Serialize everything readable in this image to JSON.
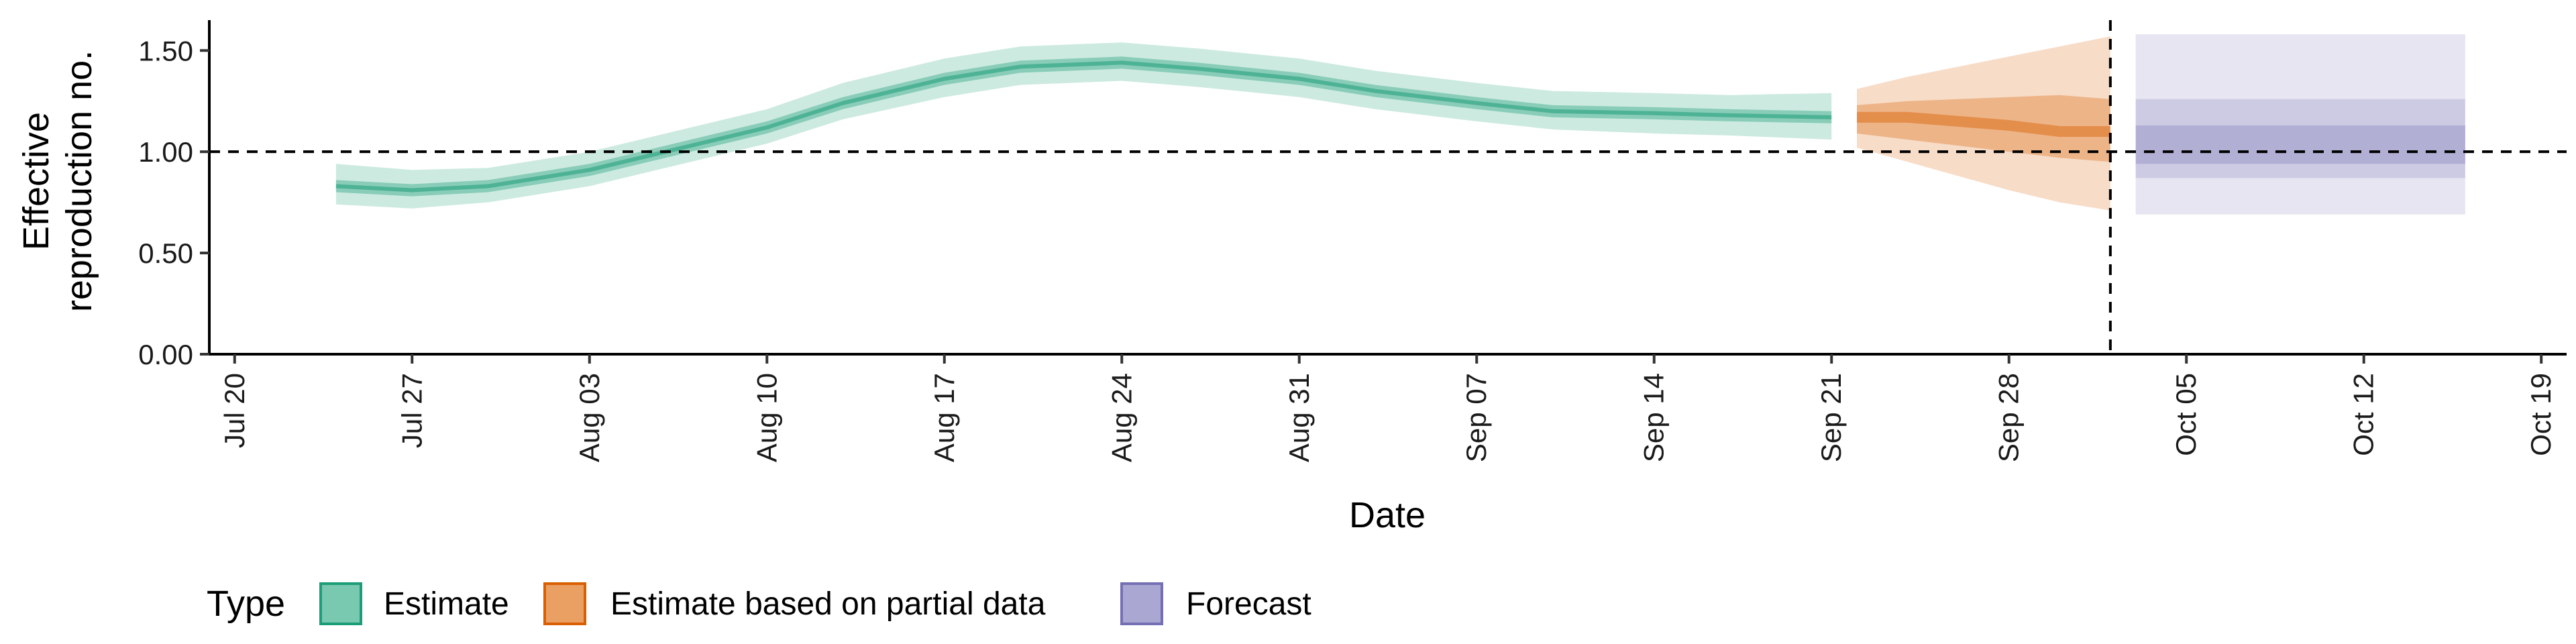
{
  "chart_data": {
    "type": "area",
    "xlabel": "Date",
    "ylabel_lines": [
      "Effective",
      "reproduction no."
    ],
    "ylim": [
      0,
      1.65
    ],
    "y_ticks": [
      0,
      0.5,
      1.0,
      1.5
    ],
    "y_tick_labels": [
      "0.00",
      "0.50",
      "1.00",
      "1.50"
    ],
    "xlim": [
      "2020-07-19",
      "2020-10-20"
    ],
    "x_ticks": [
      "2020-07-20",
      "2020-07-27",
      "2020-08-03",
      "2020-08-10",
      "2020-08-17",
      "2020-08-24",
      "2020-08-31",
      "2020-09-07",
      "2020-09-14",
      "2020-09-21",
      "2020-09-28",
      "2020-10-05",
      "2020-10-12",
      "2020-10-19"
    ],
    "x_tick_labels": [
      "Jul 20",
      "Jul 27",
      "Aug 03",
      "Aug 10",
      "Aug 17",
      "Aug 24",
      "Aug 31",
      "Sep 07",
      "Sep 14",
      "Sep 21",
      "Sep 28",
      "Oct 05",
      "Oct 12",
      "Oct 19"
    ],
    "reference_line_y": 1.0,
    "reference_line_x": "2020-10-02",
    "legend": {
      "title": "Type",
      "placement": "bottom-left",
      "items": [
        "Estimate",
        "Estimate based on partial data",
        "Forecast"
      ]
    },
    "colors": {
      "Estimate": "#1b9e77",
      "Estimate based on partial data": "#d95f02",
      "Forecast": "#7570b3"
    },
    "series": [
      {
        "name": "Estimate",
        "dates": [
          "2020-07-24",
          "2020-07-27",
          "2020-07-30",
          "2020-08-03",
          "2020-08-06",
          "2020-08-10",
          "2020-08-13",
          "2020-08-17",
          "2020-08-20",
          "2020-08-24",
          "2020-08-27",
          "2020-08-31",
          "2020-09-03",
          "2020-09-07",
          "2020-09-10",
          "2020-09-14",
          "2020-09-17",
          "2020-09-21"
        ],
        "median": [
          0.83,
          0.81,
          0.83,
          0.91,
          1.0,
          1.12,
          1.24,
          1.36,
          1.42,
          1.44,
          1.41,
          1.36,
          1.3,
          1.24,
          1.2,
          1.19,
          1.18,
          1.17
        ],
        "inner_lower": [
          0.8,
          0.78,
          0.8,
          0.88,
          0.97,
          1.09,
          1.21,
          1.33,
          1.39,
          1.41,
          1.38,
          1.33,
          1.27,
          1.21,
          1.17,
          1.16,
          1.15,
          1.14
        ],
        "inner_upper": [
          0.86,
          0.84,
          0.86,
          0.94,
          1.03,
          1.15,
          1.27,
          1.39,
          1.45,
          1.47,
          1.44,
          1.39,
          1.33,
          1.27,
          1.23,
          1.22,
          1.21,
          1.2
        ],
        "outer_lower": [
          0.74,
          0.72,
          0.75,
          0.83,
          0.92,
          1.04,
          1.16,
          1.27,
          1.33,
          1.35,
          1.32,
          1.27,
          1.21,
          1.15,
          1.11,
          1.09,
          1.08,
          1.06
        ],
        "outer_upper": [
          0.94,
          0.91,
          0.92,
          1.0,
          1.09,
          1.21,
          1.34,
          1.46,
          1.52,
          1.54,
          1.51,
          1.46,
          1.4,
          1.34,
          1.3,
          1.29,
          1.28,
          1.29
        ]
      },
      {
        "name": "Estimate based on partial data",
        "dates": [
          "2020-09-22",
          "2020-09-24",
          "2020-09-26",
          "2020-09-28",
          "2020-09-30",
          "2020-10-02"
        ],
        "median": [
          1.17,
          1.17,
          1.15,
          1.13,
          1.1,
          1.1
        ],
        "inner_lower": [
          1.09,
          1.06,
          1.03,
          1.0,
          0.97,
          0.95
        ],
        "inner_upper": [
          1.23,
          1.25,
          1.26,
          1.27,
          1.28,
          1.26
        ],
        "outer_lower": [
          1.02,
          0.95,
          0.88,
          0.81,
          0.75,
          0.71
        ],
        "outer_upper": [
          1.31,
          1.37,
          1.42,
          1.47,
          1.52,
          1.57
        ]
      },
      {
        "name": "Forecast",
        "dates": [
          "2020-10-03",
          "2020-10-16"
        ],
        "median": [
          1.03,
          1.03
        ],
        "inner_lower": [
          0.94,
          0.94
        ],
        "inner_upper": [
          1.13,
          1.13
        ],
        "mid_lower": [
          0.87,
          0.87
        ],
        "mid_upper": [
          1.26,
          1.26
        ],
        "outer_lower": [
          0.69,
          0.69
        ],
        "outer_upper": [
          1.58,
          1.58
        ]
      }
    ]
  }
}
